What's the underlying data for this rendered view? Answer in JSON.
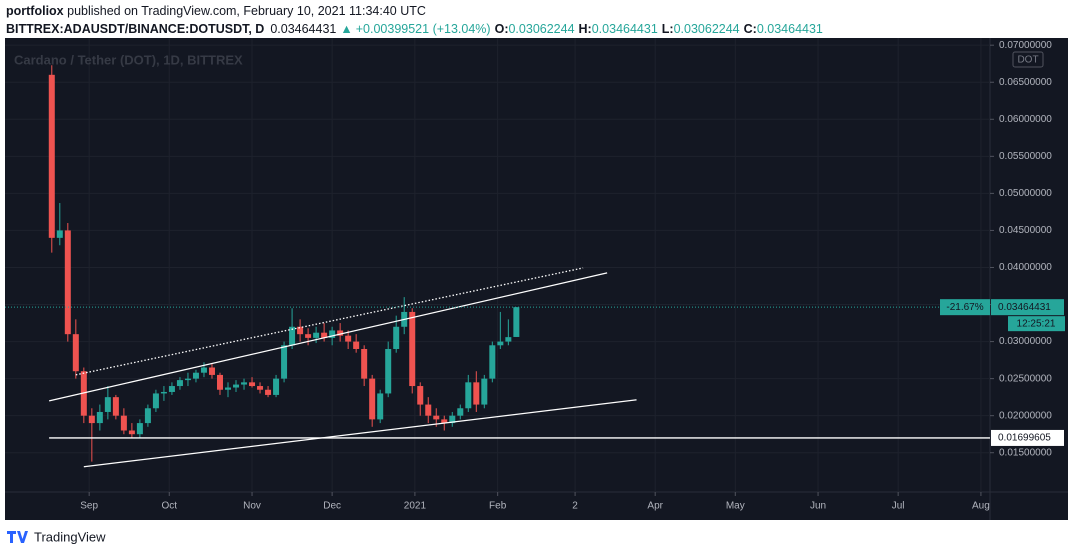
{
  "header": {
    "author": "portfoliox",
    "published": " published on TradingView.com, February 10, 2021 11:34:40 UTC",
    "symbol": "BITTREX:ADAUSDT/BINANCE:DOTUSDT, D",
    "last": "0.03464431",
    "arrow": "▲",
    "change": "+0.00399521 (+13.04%)",
    "o_label": "O:",
    "o": "0.03062244",
    "h_label": "H:",
    "h": "0.03464431",
    "l_label": "L:",
    "l": "0.03062244",
    "c_label": "C:",
    "c": "0.03464431"
  },
  "chart_data": {
    "type": "candlestick",
    "title": "Cardano / Tether (DOT), 1D, BITTREX",
    "currency": "DOT",
    "x": [
      -2,
      1,
      4,
      7,
      10,
      13,
      16,
      19,
      22,
      25,
      28,
      31,
      34,
      37,
      40,
      43,
      46,
      49,
      52,
      55,
      58,
      61,
      64,
      67,
      70,
      73,
      76,
      79,
      82,
      85,
      88,
      91,
      94,
      97,
      100,
      103,
      106,
      109,
      112,
      115,
      118,
      121,
      124,
      127,
      130,
      133,
      136,
      139,
      142,
      145,
      148,
      151,
      154,
      157,
      160,
      163,
      166,
      169,
      172
    ],
    "open": [
      0.066,
      0.044,
      0.045,
      0.031,
      0.026,
      0.02,
      0.019,
      0.0205,
      0.0225,
      0.02,
      0.018,
      0.0175,
      0.019,
      0.021,
      0.023,
      0.0232,
      0.024,
      0.0248,
      0.025,
      0.0258,
      0.0265,
      0.0255,
      0.0235,
      0.0238,
      0.0242,
      0.0245,
      0.024,
      0.0235,
      0.0228,
      0.025,
      0.0295,
      0.032,
      0.031,
      0.0305,
      0.0312,
      0.0305,
      0.0315,
      0.0308,
      0.03,
      0.029,
      0.025,
      0.0195,
      0.023,
      0.029,
      0.032,
      0.034,
      0.024,
      0.0215,
      0.02,
      0.0195,
      0.019,
      0.02,
      0.021,
      0.0245,
      0.0215,
      0.025,
      0.0295,
      0.03,
      0.03062244
    ],
    "high": [
      0.0673,
      0.0487,
      0.046,
      0.033,
      0.0265,
      0.021,
      0.0215,
      0.024,
      0.0228,
      0.021,
      0.019,
      0.0195,
      0.0215,
      0.0235,
      0.024,
      0.0245,
      0.0252,
      0.0258,
      0.0262,
      0.0272,
      0.027,
      0.0258,
      0.0245,
      0.0248,
      0.025,
      0.0252,
      0.0245,
      0.024,
      0.0255,
      0.03,
      0.0345,
      0.033,
      0.0318,
      0.032,
      0.0325,
      0.032,
      0.0325,
      0.0315,
      0.031,
      0.0295,
      0.0255,
      0.0235,
      0.03,
      0.0335,
      0.036,
      0.0345,
      0.0245,
      0.0225,
      0.021,
      0.02,
      0.0205,
      0.0215,
      0.0255,
      0.026,
      0.0255,
      0.03,
      0.034,
      0.033,
      0.03464431
    ],
    "low": [
      0.042,
      0.043,
      0.03,
      0.025,
      0.019,
      0.0138,
      0.018,
      0.0195,
      0.0195,
      0.0175,
      0.017,
      0.017,
      0.0185,
      0.0205,
      0.022,
      0.0228,
      0.0235,
      0.024,
      0.0245,
      0.0252,
      0.025,
      0.0228,
      0.0225,
      0.0232,
      0.0235,
      0.0238,
      0.023,
      0.0225,
      0.0225,
      0.0245,
      0.029,
      0.03,
      0.0295,
      0.0298,
      0.03,
      0.0295,
      0.03,
      0.029,
      0.0285,
      0.024,
      0.0185,
      0.019,
      0.0225,
      0.0285,
      0.031,
      0.023,
      0.02,
      0.019,
      0.0185,
      0.018,
      0.0185,
      0.0195,
      0.0205,
      0.0205,
      0.021,
      0.0245,
      0.029,
      0.0295,
      0.03062244
    ],
    "close": [
      0.044,
      0.045,
      0.031,
      0.026,
      0.02,
      0.019,
      0.0205,
      0.0225,
      0.02,
      0.018,
      0.0175,
      0.019,
      0.021,
      0.023,
      0.0232,
      0.024,
      0.0248,
      0.025,
      0.0258,
      0.0265,
      0.0255,
      0.0235,
      0.0238,
      0.0242,
      0.0245,
      0.024,
      0.0235,
      0.0228,
      0.025,
      0.0295,
      0.032,
      0.031,
      0.0305,
      0.0312,
      0.0305,
      0.0315,
      0.0308,
      0.03,
      0.029,
      0.025,
      0.0195,
      0.023,
      0.029,
      0.032,
      0.034,
      0.024,
      0.0215,
      0.02,
      0.0195,
      0.019,
      0.02,
      0.021,
      0.0245,
      0.0215,
      0.025,
      0.0295,
      0.03,
      0.0306,
      0.03464431
    ],
    "up_color": "#26a69a",
    "down_color": "#ef5350",
    "xlim": [
      -18.4,
      349.4
    ],
    "xticks": [
      {
        "value": 12,
        "label": "Sep"
      },
      {
        "value": 42,
        "label": "Oct"
      },
      {
        "value": 73,
        "label": "Nov"
      },
      {
        "value": 103,
        "label": "Dec"
      },
      {
        "value": 134,
        "label": "2021"
      },
      {
        "value": 165,
        "label": "Feb"
      },
      {
        "value": 194,
        "label": "2"
      },
      {
        "value": 224,
        "label": "Apr"
      },
      {
        "value": 254,
        "label": "May"
      },
      {
        "value": 285,
        "label": "Jun"
      },
      {
        "value": 315,
        "label": "Jul"
      },
      {
        "value": 346,
        "label": "Aug"
      }
    ],
    "ylim": [
      0.0097,
      0.0707
    ],
    "yticks": [
      {
        "value": 0.015,
        "label": "0.01500000"
      },
      {
        "value": 0.02,
        "label": "0.02000000"
      },
      {
        "value": 0.025,
        "label": "0.02500000"
      },
      {
        "value": 0.03,
        "label": "0.03000000"
      },
      {
        "value": 0.035,
        "label": "0.03500000"
      },
      {
        "value": 0.04,
        "label": "0.04000000"
      },
      {
        "value": 0.045,
        "label": "0.04500000"
      },
      {
        "value": 0.05,
        "label": "0.05000000"
      },
      {
        "value": 0.055,
        "label": "0.05500000"
      },
      {
        "value": 0.06,
        "label": "0.06000000"
      },
      {
        "value": 0.065,
        "label": "0.06500000"
      },
      {
        "value": 0.07,
        "label": "0.07000000"
      }
    ],
    "grid": true,
    "price_line": {
      "value": 0.03464431,
      "change_label": "-21.67%",
      "countdown": "12:25:21"
    },
    "horizontal_line": {
      "value": 0.01699605
    },
    "trendlines": [
      {
        "x": [
          -3,
          206
        ],
        "y": [
          0.022,
          0.03927
        ],
        "style": "solid"
      },
      {
        "x": [
          7,
          197
        ],
        "y": [
          0.02551,
          0.03994
        ],
        "style": "dotted"
      },
      {
        "x": [
          10,
          217
        ],
        "y": [
          0.01311,
          0.02214
        ],
        "style": "solid"
      }
    ]
  },
  "footer": {
    "brand": "TradingView"
  }
}
